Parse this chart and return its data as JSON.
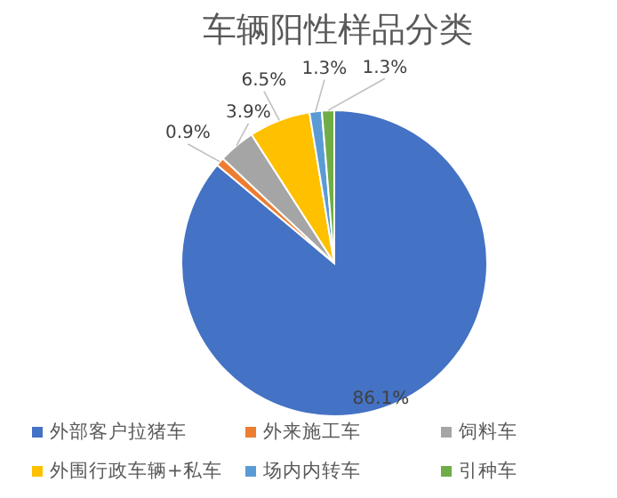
{
  "chart_data": {
    "type": "pie",
    "title": "车辆阳性样品分类",
    "categories": [
      "外部客户拉猪车",
      "外来施工车",
      "饲料车",
      "外围行政车辆+私车",
      "场内内转车",
      "引种车"
    ],
    "values": [
      86.1,
      0.9,
      3.9,
      6.5,
      1.3,
      1.3
    ],
    "colors": [
      "#4472c4",
      "#ed7d31",
      "#a5a5a5",
      "#ffc000",
      "#5b9bd5",
      "#70ad47"
    ],
    "value_labels": [
      "86.1%",
      "0.9%",
      "3.9%",
      "6.5%",
      "1.3%",
      "1.3%"
    ],
    "legend": "bottom"
  }
}
